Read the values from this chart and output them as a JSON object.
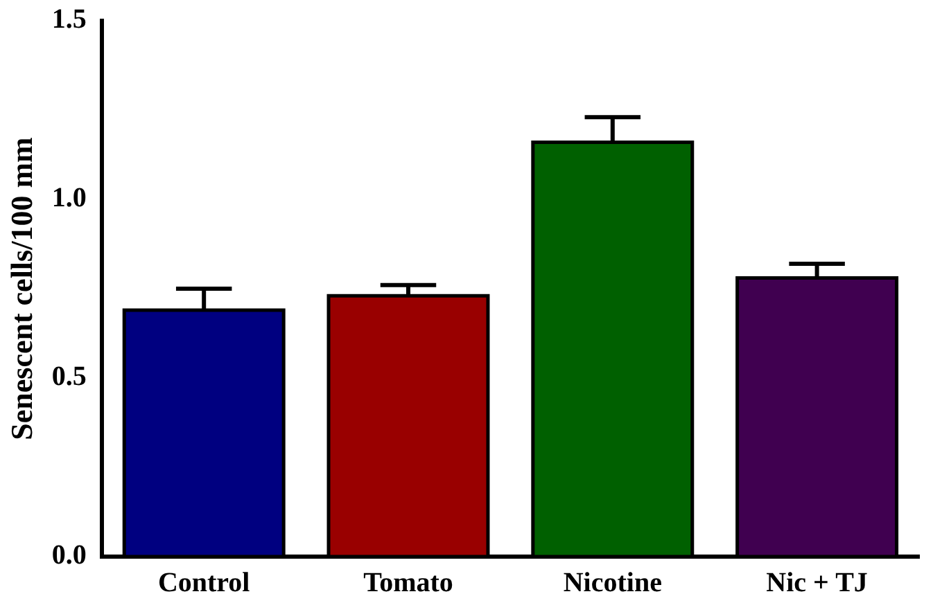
{
  "chart_data": {
    "type": "bar",
    "ylabel": "Senescent cells/100 mm",
    "categories": [
      "Control",
      "Tomato",
      "Nicotine",
      "Nic + TJ"
    ],
    "values": [
      0.69,
      0.73,
      1.16,
      0.78
    ],
    "colors": [
      "#000080",
      "#990000",
      "#006000",
      "#400050"
    ],
    "errors": [
      [
        0.69,
        0.75
      ],
      [
        0.73,
        0.76
      ],
      [
        1.16,
        1.23
      ],
      [
        0.78,
        0.82
      ]
    ],
    "ylim": [
      0,
      1.5
    ],
    "yticks": [
      {
        "value": 0,
        "label": "0.0"
      },
      {
        "value": 0.5,
        "label": "0.5"
      },
      {
        "value": 1,
        "label": "1.0"
      },
      {
        "value": 1.5,
        "label": "1.5"
      }
    ],
    "grid": false,
    "legend": false
  }
}
